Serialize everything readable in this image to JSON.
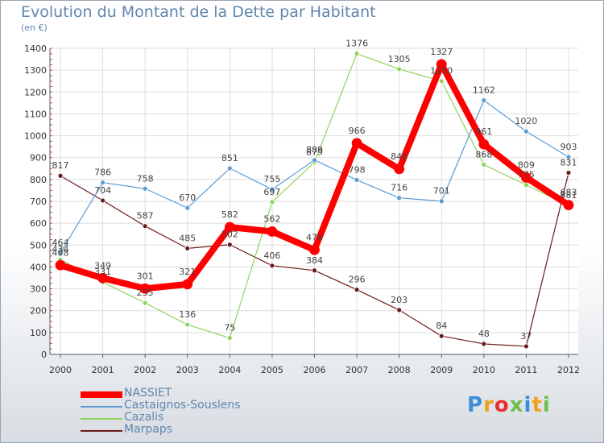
{
  "title": "Evolution du Montant de la Dette par Habitant",
  "subtitle": "(en €)",
  "logo": {
    "text": "Proxiti",
    "colors": [
      "#3a8fd6",
      "#f0a020",
      "#e83030",
      "#6cc04a",
      "#3a8fd6",
      "#f0a020",
      "#6cc04a"
    ]
  },
  "chart_data": {
    "type": "line",
    "categories": [
      "2000",
      "2001",
      "2002",
      "2003",
      "2004",
      "2005",
      "2006",
      "2007",
      "2008",
      "2009",
      "2010",
      "2011",
      "2012"
    ],
    "ylim": [
      0,
      1400
    ],
    "yticks": [
      0,
      100,
      200,
      300,
      400,
      500,
      600,
      700,
      800,
      900,
      1000,
      1100,
      1200,
      1300,
      1400
    ],
    "grid": true,
    "legend_position": "bottom-left",
    "series": [
      {
        "name": "Marpaps",
        "color": "#6b1a1a",
        "width": 1.2,
        "marker": 3,
        "values": [
          817,
          704,
          587,
          485,
          502,
          406,
          384,
          296,
          203,
          84,
          48,
          37,
          831
        ],
        "labels": [
          "817",
          "704",
          "587",
          "485",
          "502",
          "406",
          "384",
          "296",
          "203",
          "84",
          "48",
          "37",
          "831"
        ]
      },
      {
        "name": "Cazalis",
        "color": "#8fd45a",
        "width": 1.2,
        "marker": 3,
        "values": [
          434,
          331,
          235,
          136,
          75,
          697,
          879,
          1376,
          1305,
          1250,
          868,
          775,
          681
        ],
        "labels": [
          "434",
          "331",
          "235",
          "136",
          "75",
          "697",
          "879",
          "1376",
          "1305",
          "1250",
          "868",
          "775",
          "681"
        ]
      },
      {
        "name": "Castaignos-Souslens",
        "color": "#5b9bd5",
        "width": 1.2,
        "marker": 3,
        "values": [
          464,
          786,
          758,
          670,
          851,
          755,
          889,
          798,
          716,
          701,
          1162,
          1020,
          903
        ],
        "labels": [
          "464",
          "786",
          "758",
          "670",
          "851",
          "755",
          "889",
          "798",
          "716",
          "701",
          "1162",
          "1020",
          "903"
        ]
      },
      {
        "name": "NASSIET",
        "color": "#ff0000",
        "width": 8,
        "marker": 6,
        "values": [
          408,
          349,
          301,
          321,
          582,
          562,
          478,
          966,
          848,
          1327,
          961,
          809,
          683
        ],
        "labels": [
          "408",
          "349",
          "301",
          "321",
          "582",
          "562",
          "478",
          "966",
          "848",
          "1327",
          "961",
          "809",
          "683"
        ]
      }
    ],
    "legend_order": [
      "NASSIET",
      "Castaignos-Souslens",
      "Cazalis",
      "Marpaps"
    ]
  }
}
